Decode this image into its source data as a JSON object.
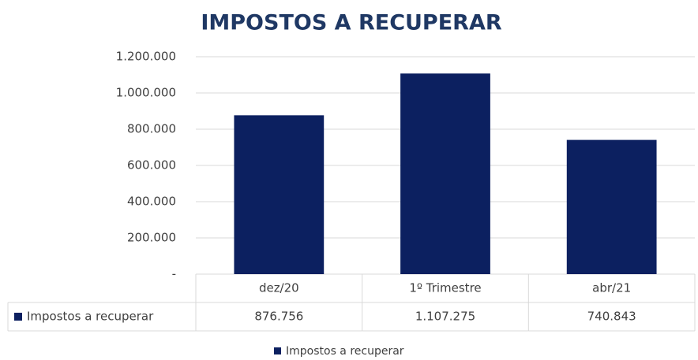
{
  "chart_data": {
    "type": "bar",
    "title": "IMPOSTOS A RECUPERAR",
    "categories": [
      "dez/20",
      "1º Trimestre",
      "abr/21"
    ],
    "series": [
      {
        "name": "Impostos a recuperar",
        "color": "#0c2060",
        "values": [
          876756,
          1107275,
          740843
        ],
        "value_labels": [
          "876.756",
          "1.107.275",
          "740.843"
        ]
      }
    ],
    "ylim": [
      0,
      1200000
    ],
    "yticks": [
      {
        "value": 0,
        "label": "-"
      },
      {
        "value": 200000,
        "label": "200.000"
      },
      {
        "value": 400000,
        "label": "400.000"
      },
      {
        "value": 600000,
        "label": "600.000"
      },
      {
        "value": 800000,
        "label": "800.000"
      },
      {
        "value": 1000000,
        "label": "1.000.000"
      },
      {
        "value": 1200000,
        "label": "1.200.000"
      }
    ],
    "grid": true,
    "data_table": true,
    "legend": "bottom"
  }
}
